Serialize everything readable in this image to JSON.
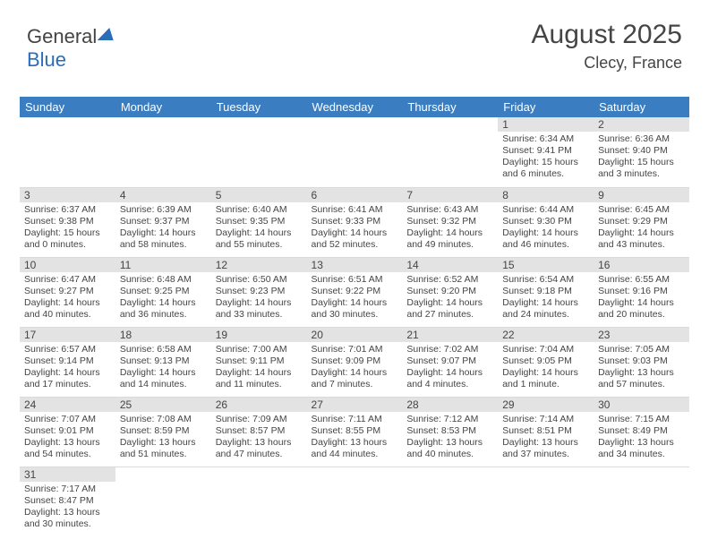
{
  "logo": {
    "general": "General",
    "blue": "Blue"
  },
  "header": {
    "month_year": "August 2025",
    "location": "Clecy, France"
  },
  "weekdays": [
    "Sunday",
    "Monday",
    "Tuesday",
    "Wednesday",
    "Thursday",
    "Friday",
    "Saturday"
  ],
  "colors": {
    "header_blue": "#3a7dc0",
    "daynum_bg": "#e3e3e3",
    "border": "#d0dce8",
    "text": "#454545",
    "logo_blue": "#2a6db8"
  },
  "start_day_index": 5,
  "days": [
    {
      "n": "1",
      "sr": "Sunrise: 6:34 AM",
      "ss": "Sunset: 9:41 PM",
      "d1": "Daylight: 15 hours",
      "d2": "and 6 minutes."
    },
    {
      "n": "2",
      "sr": "Sunrise: 6:36 AM",
      "ss": "Sunset: 9:40 PM",
      "d1": "Daylight: 15 hours",
      "d2": "and 3 minutes."
    },
    {
      "n": "3",
      "sr": "Sunrise: 6:37 AM",
      "ss": "Sunset: 9:38 PM",
      "d1": "Daylight: 15 hours",
      "d2": "and 0 minutes."
    },
    {
      "n": "4",
      "sr": "Sunrise: 6:39 AM",
      "ss": "Sunset: 9:37 PM",
      "d1": "Daylight: 14 hours",
      "d2": "and 58 minutes."
    },
    {
      "n": "5",
      "sr": "Sunrise: 6:40 AM",
      "ss": "Sunset: 9:35 PM",
      "d1": "Daylight: 14 hours",
      "d2": "and 55 minutes."
    },
    {
      "n": "6",
      "sr": "Sunrise: 6:41 AM",
      "ss": "Sunset: 9:33 PM",
      "d1": "Daylight: 14 hours",
      "d2": "and 52 minutes."
    },
    {
      "n": "7",
      "sr": "Sunrise: 6:43 AM",
      "ss": "Sunset: 9:32 PM",
      "d1": "Daylight: 14 hours",
      "d2": "and 49 minutes."
    },
    {
      "n": "8",
      "sr": "Sunrise: 6:44 AM",
      "ss": "Sunset: 9:30 PM",
      "d1": "Daylight: 14 hours",
      "d2": "and 46 minutes."
    },
    {
      "n": "9",
      "sr": "Sunrise: 6:45 AM",
      "ss": "Sunset: 9:29 PM",
      "d1": "Daylight: 14 hours",
      "d2": "and 43 minutes."
    },
    {
      "n": "10",
      "sr": "Sunrise: 6:47 AM",
      "ss": "Sunset: 9:27 PM",
      "d1": "Daylight: 14 hours",
      "d2": "and 40 minutes."
    },
    {
      "n": "11",
      "sr": "Sunrise: 6:48 AM",
      "ss": "Sunset: 9:25 PM",
      "d1": "Daylight: 14 hours",
      "d2": "and 36 minutes."
    },
    {
      "n": "12",
      "sr": "Sunrise: 6:50 AM",
      "ss": "Sunset: 9:23 PM",
      "d1": "Daylight: 14 hours",
      "d2": "and 33 minutes."
    },
    {
      "n": "13",
      "sr": "Sunrise: 6:51 AM",
      "ss": "Sunset: 9:22 PM",
      "d1": "Daylight: 14 hours",
      "d2": "and 30 minutes."
    },
    {
      "n": "14",
      "sr": "Sunrise: 6:52 AM",
      "ss": "Sunset: 9:20 PM",
      "d1": "Daylight: 14 hours",
      "d2": "and 27 minutes."
    },
    {
      "n": "15",
      "sr": "Sunrise: 6:54 AM",
      "ss": "Sunset: 9:18 PM",
      "d1": "Daylight: 14 hours",
      "d2": "and 24 minutes."
    },
    {
      "n": "16",
      "sr": "Sunrise: 6:55 AM",
      "ss": "Sunset: 9:16 PM",
      "d1": "Daylight: 14 hours",
      "d2": "and 20 minutes."
    },
    {
      "n": "17",
      "sr": "Sunrise: 6:57 AM",
      "ss": "Sunset: 9:14 PM",
      "d1": "Daylight: 14 hours",
      "d2": "and 17 minutes."
    },
    {
      "n": "18",
      "sr": "Sunrise: 6:58 AM",
      "ss": "Sunset: 9:13 PM",
      "d1": "Daylight: 14 hours",
      "d2": "and 14 minutes."
    },
    {
      "n": "19",
      "sr": "Sunrise: 7:00 AM",
      "ss": "Sunset: 9:11 PM",
      "d1": "Daylight: 14 hours",
      "d2": "and 11 minutes."
    },
    {
      "n": "20",
      "sr": "Sunrise: 7:01 AM",
      "ss": "Sunset: 9:09 PM",
      "d1": "Daylight: 14 hours",
      "d2": "and 7 minutes."
    },
    {
      "n": "21",
      "sr": "Sunrise: 7:02 AM",
      "ss": "Sunset: 9:07 PM",
      "d1": "Daylight: 14 hours",
      "d2": "and 4 minutes."
    },
    {
      "n": "22",
      "sr": "Sunrise: 7:04 AM",
      "ss": "Sunset: 9:05 PM",
      "d1": "Daylight: 14 hours",
      "d2": "and 1 minute."
    },
    {
      "n": "23",
      "sr": "Sunrise: 7:05 AM",
      "ss": "Sunset: 9:03 PM",
      "d1": "Daylight: 13 hours",
      "d2": "and 57 minutes."
    },
    {
      "n": "24",
      "sr": "Sunrise: 7:07 AM",
      "ss": "Sunset: 9:01 PM",
      "d1": "Daylight: 13 hours",
      "d2": "and 54 minutes."
    },
    {
      "n": "25",
      "sr": "Sunrise: 7:08 AM",
      "ss": "Sunset: 8:59 PM",
      "d1": "Daylight: 13 hours",
      "d2": "and 51 minutes."
    },
    {
      "n": "26",
      "sr": "Sunrise: 7:09 AM",
      "ss": "Sunset: 8:57 PM",
      "d1": "Daylight: 13 hours",
      "d2": "and 47 minutes."
    },
    {
      "n": "27",
      "sr": "Sunrise: 7:11 AM",
      "ss": "Sunset: 8:55 PM",
      "d1": "Daylight: 13 hours",
      "d2": "and 44 minutes."
    },
    {
      "n": "28",
      "sr": "Sunrise: 7:12 AM",
      "ss": "Sunset: 8:53 PM",
      "d1": "Daylight: 13 hours",
      "d2": "and 40 minutes."
    },
    {
      "n": "29",
      "sr": "Sunrise: 7:14 AM",
      "ss": "Sunset: 8:51 PM",
      "d1": "Daylight: 13 hours",
      "d2": "and 37 minutes."
    },
    {
      "n": "30",
      "sr": "Sunrise: 7:15 AM",
      "ss": "Sunset: 8:49 PM",
      "d1": "Daylight: 13 hours",
      "d2": "and 34 minutes."
    },
    {
      "n": "31",
      "sr": "Sunrise: 7:17 AM",
      "ss": "Sunset: 8:47 PM",
      "d1": "Daylight: 13 hours",
      "d2": "and 30 minutes."
    }
  ]
}
